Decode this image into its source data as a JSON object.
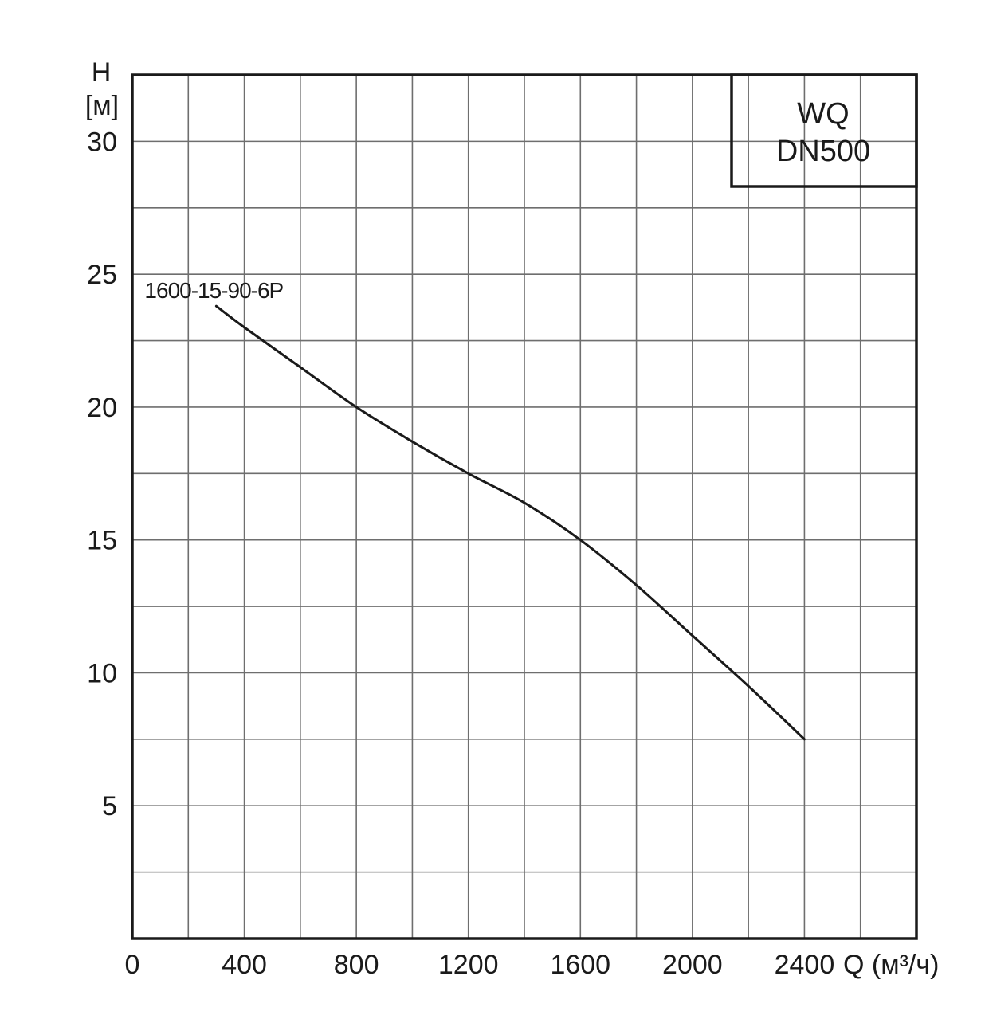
{
  "chart_data": {
    "type": "line",
    "title": "",
    "xlabel": "Q (м³/ч)",
    "ylabel_line1": "H",
    "ylabel_line2": "[м]",
    "xlim": [
      0,
      2800
    ],
    "ylim": [
      0,
      32.5
    ],
    "x_ticks": [
      0,
      400,
      800,
      1200,
      1600,
      2000,
      2400
    ],
    "y_ticks": [
      5,
      10,
      15,
      20,
      25,
      30
    ],
    "grid": true,
    "model_box": {
      "line1": "WQ",
      "line2": "DN500"
    },
    "series": [
      {
        "name": "1600-15-90-6P",
        "x": [
          300,
          400,
          600,
          800,
          1000,
          1200,
          1400,
          1600,
          1800,
          2000,
          2200,
          2400
        ],
        "y": [
          23.8,
          23.0,
          21.5,
          20.0,
          18.7,
          17.5,
          16.4,
          15.0,
          13.3,
          11.4,
          9.5,
          7.5
        ]
      }
    ]
  }
}
